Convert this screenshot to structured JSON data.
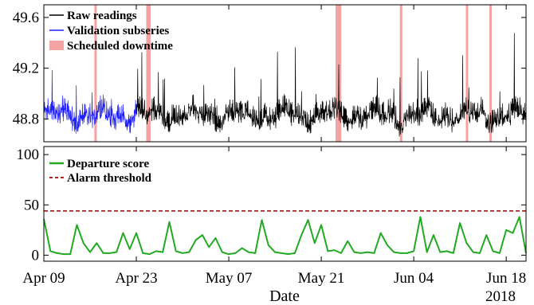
{
  "chart_data": [
    {
      "type": "line",
      "xlabel": "Date",
      "year_label": "2018",
      "x_range": [
        "2018-04-09",
        "2018-06-21"
      ],
      "x_ticks": [
        {
          "date": "2018-04-09",
          "label": "Apr 09"
        },
        {
          "date": "2018-04-23",
          "label": "Apr 23"
        },
        {
          "date": "2018-05-07",
          "label": "May 07"
        },
        {
          "date": "2018-05-21",
          "label": "May 21"
        },
        {
          "date": "2018-06-04",
          "label": "Jun 04"
        },
        {
          "date": "2018-06-18",
          "label": "Jun 18"
        }
      ],
      "ylim": [
        48.62,
        49.7
      ],
      "y_ticks": [
        {
          "value": 48.8,
          "label": "48.8"
        },
        {
          "value": 49.2,
          "label": "49.2"
        },
        {
          "value": 49.6,
          "label": "49.6"
        }
      ],
      "legend_position": "top-left",
      "series": [
        {
          "name": "Raw readings",
          "color": "#000000",
          "start": "2018-04-23",
          "end": "2018-06-21",
          "baseline": 48.86,
          "spike_max": 49.42
        },
        {
          "name": "Validation subseries",
          "color": "#1f1fff",
          "start": "2018-04-09",
          "end": "2018-04-23",
          "baseline": 48.86,
          "spike_max": 49.32
        }
      ],
      "downtime_label": "Scheduled downtime",
      "downtime_color": "#f4a3a3",
      "downtime_periods": [
        [
          "2018-04-16T18:00",
          "2018-04-16T22:00"
        ],
        [
          "2018-04-24T12:00",
          "2018-04-25T04:00"
        ],
        [
          "2018-05-23T04:00",
          "2018-05-24T01:00"
        ],
        [
          "2018-06-02T00:00",
          "2018-06-02T04:00"
        ],
        [
          "2018-06-11T23:00",
          "2018-06-12T04:00"
        ],
        [
          "2018-06-15T13:00",
          "2018-06-15T17:00"
        ]
      ]
    },
    {
      "type": "line",
      "x_range": [
        "2018-04-09",
        "2018-06-21"
      ],
      "ylim": [
        -6,
        108
      ],
      "y_ticks": [
        {
          "value": 0,
          "label": "0"
        },
        {
          "value": 50,
          "label": "50"
        },
        {
          "value": 100,
          "label": "100"
        }
      ],
      "legend_position": "top-left",
      "series": [
        {
          "name": "Departure score",
          "color": "#22aa22",
          "x": [
            "2018-04-09",
            "2018-04-10",
            "2018-04-11",
            "2018-04-12",
            "2018-04-13",
            "2018-04-14",
            "2018-04-15",
            "2018-04-16",
            "2018-04-17",
            "2018-04-18",
            "2018-04-19",
            "2018-04-20",
            "2018-04-21",
            "2018-04-22",
            "2018-04-23",
            "2018-04-24",
            "2018-04-25",
            "2018-04-26",
            "2018-04-27",
            "2018-04-28",
            "2018-04-29",
            "2018-04-30",
            "2018-05-01",
            "2018-05-02",
            "2018-05-03",
            "2018-05-04",
            "2018-05-05",
            "2018-05-06",
            "2018-05-07",
            "2018-05-08",
            "2018-05-09",
            "2018-05-10",
            "2018-05-11",
            "2018-05-12",
            "2018-05-13",
            "2018-05-14",
            "2018-05-15",
            "2018-05-16",
            "2018-05-17",
            "2018-05-18",
            "2018-05-19",
            "2018-05-20",
            "2018-05-21",
            "2018-05-22",
            "2018-05-23",
            "2018-05-24",
            "2018-05-25",
            "2018-05-26",
            "2018-05-27",
            "2018-05-28",
            "2018-05-29",
            "2018-05-30",
            "2018-05-31",
            "2018-06-01",
            "2018-06-02",
            "2018-06-03",
            "2018-06-04",
            "2018-06-05",
            "2018-06-06",
            "2018-06-07",
            "2018-06-08",
            "2018-06-09",
            "2018-06-10",
            "2018-06-11",
            "2018-06-12",
            "2018-06-13",
            "2018-06-14",
            "2018-06-15",
            "2018-06-16",
            "2018-06-17",
            "2018-06-18",
            "2018-06-19",
            "2018-06-20",
            "2018-06-21"
          ],
          "values": [
            36,
            4,
            2,
            1,
            1,
            30,
            12,
            3,
            12,
            2,
            2,
            3,
            22,
            6,
            22,
            2,
            1,
            4,
            3,
            33,
            4,
            2,
            3,
            15,
            20,
            8,
            17,
            3,
            1,
            2,
            7,
            3,
            2,
            35,
            10,
            3,
            2,
            1,
            2,
            20,
            35,
            12,
            30,
            4,
            5,
            2,
            14,
            3,
            2,
            3,
            2,
            22,
            10,
            3,
            2,
            2,
            4,
            38,
            3,
            20,
            3,
            4,
            2,
            32,
            12,
            3,
            2,
            20,
            4,
            2,
            25,
            22,
            38,
            2
          ]
        },
        {
          "name": "Alarm threshold",
          "color": "#b22222",
          "dashed": true,
          "value": 44
        }
      ]
    }
  ]
}
